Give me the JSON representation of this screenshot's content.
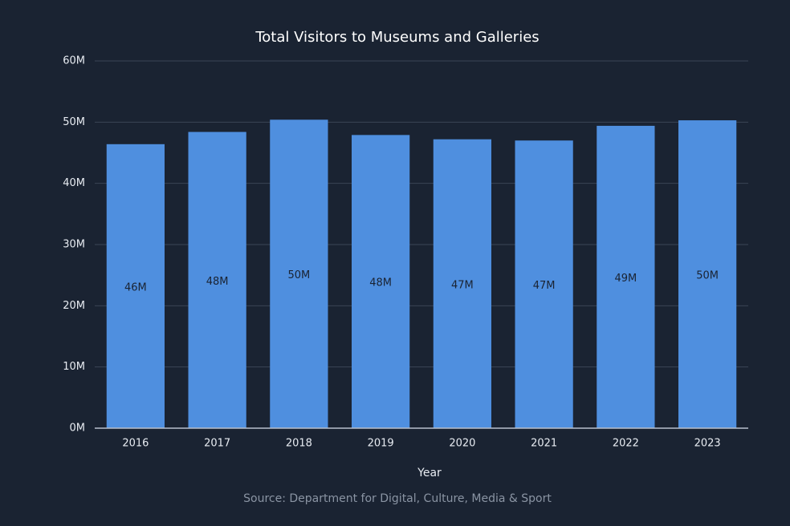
{
  "chart_data": {
    "type": "bar",
    "title": "Total Visitors to Museums and Galleries",
    "categories": [
      "2016",
      "2017",
      "2018",
      "2019",
      "2020",
      "2021",
      "2022",
      "2023"
    ],
    "values": [
      46.4,
      48.4,
      50.4,
      47.9,
      47.2,
      47.0,
      49.4,
      50.3
    ],
    "value_labels": [
      "46M",
      "48M",
      "50M",
      "48M",
      "47M",
      "47M",
      "49M",
      "50M"
    ],
    "color": "#4f8fdf",
    "ylim": [
      0,
      60
    ],
    "yticks": [
      {
        "value": 0,
        "label": "0M"
      },
      {
        "value": 10,
        "label": "10M"
      },
      {
        "value": 20,
        "label": "20M"
      },
      {
        "value": 30,
        "label": "30M"
      },
      {
        "value": 40,
        "label": "40M"
      },
      {
        "value": 50,
        "label": "50M"
      },
      {
        "value": 60,
        "label": "60M"
      }
    ],
    "xlabel": "Year",
    "source": "Source: Department for Digital, Culture, Media & Sport",
    "grid": true
  }
}
